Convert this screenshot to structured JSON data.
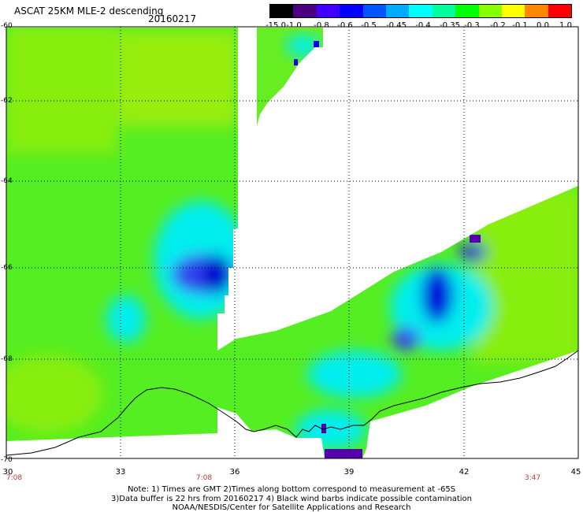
{
  "header": {
    "title": "ASCAT 25KM MLE-2 descending",
    "date": "20160217"
  },
  "colorbar": {
    "labels": [
      "-15.0",
      "-1.0",
      "-0.8",
      "-0.6",
      "-0.5",
      "-0.45",
      "-0.4",
      "-0.35",
      "-0.3",
      "-0.2",
      "-0.1",
      "0.0",
      "1.0"
    ],
    "colors": [
      "#000000",
      "#4b0082",
      "#3f00ff",
      "#0000ff",
      "#0055ff",
      "#00aaff",
      "#00ffff",
      "#00ff99",
      "#00ff00",
      "#88ff00",
      "#ffff00",
      "#ff8800",
      "#ff0000"
    ]
  },
  "axes": {
    "lat_labels": [
      "-60",
      "-62",
      "-64",
      "-66",
      "-68",
      "-70"
    ],
    "lon_labels": [
      "30",
      "33",
      "36",
      "39",
      "42",
      "45"
    ],
    "time_labels": [
      "7:08",
      "7:08",
      "3:47"
    ]
  },
  "notes": {
    "line1": "Note: 1) Times are GMT 2)Times along bottom correspond to measurement at -65S",
    "line2": "3)Data buffer is 22 hrs from 20160217 4) Black wind barbs indicate possible contamination",
    "line3": "NOAA/NESDIS/Center for Satellite Applications and Research"
  },
  "map_colors": {
    "land_green": "#55ee22",
    "light_green": "#99ee11",
    "cyan": "#00eeee",
    "blue": "#0000ee",
    "violet": "#5500aa"
  }
}
